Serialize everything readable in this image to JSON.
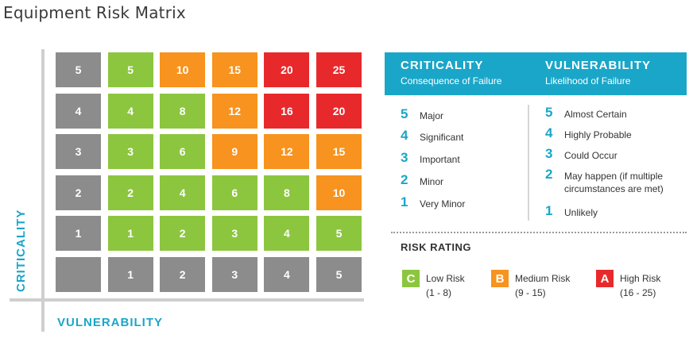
{
  "title": "Equipment Risk Matrix",
  "axes": {
    "y_label": "CRITICALITY",
    "x_label": "VULNERABILITY"
  },
  "colors": {
    "gray": "#8c8c8c",
    "low": "#8cc63f",
    "medium": "#f7931e",
    "high": "#e8292c",
    "accent": "#1aa6c8"
  },
  "matrix": {
    "rows": [
      [
        {
          "v": "5",
          "c": "gray"
        },
        {
          "v": "5",
          "c": "low"
        },
        {
          "v": "10",
          "c": "medium"
        },
        {
          "v": "15",
          "c": "medium"
        },
        {
          "v": "20",
          "c": "high"
        },
        {
          "v": "25",
          "c": "high"
        }
      ],
      [
        {
          "v": "4",
          "c": "gray"
        },
        {
          "v": "4",
          "c": "low"
        },
        {
          "v": "8",
          "c": "low"
        },
        {
          "v": "12",
          "c": "medium"
        },
        {
          "v": "16",
          "c": "high"
        },
        {
          "v": "20",
          "c": "high"
        }
      ],
      [
        {
          "v": "3",
          "c": "gray"
        },
        {
          "v": "3",
          "c": "low"
        },
        {
          "v": "6",
          "c": "low"
        },
        {
          "v": "9",
          "c": "medium"
        },
        {
          "v": "12",
          "c": "medium"
        },
        {
          "v": "15",
          "c": "medium"
        }
      ],
      [
        {
          "v": "2",
          "c": "gray"
        },
        {
          "v": "2",
          "c": "low"
        },
        {
          "v": "4",
          "c": "low"
        },
        {
          "v": "6",
          "c": "low"
        },
        {
          "v": "8",
          "c": "low"
        },
        {
          "v": "10",
          "c": "medium"
        }
      ],
      [
        {
          "v": "1",
          "c": "gray"
        },
        {
          "v": "1",
          "c": "low"
        },
        {
          "v": "2",
          "c": "low"
        },
        {
          "v": "3",
          "c": "low"
        },
        {
          "v": "4",
          "c": "low"
        },
        {
          "v": "5",
          "c": "low"
        }
      ],
      [
        {
          "v": "",
          "c": "gray"
        },
        {
          "v": "1",
          "c": "gray"
        },
        {
          "v": "2",
          "c": "gray"
        },
        {
          "v": "3",
          "c": "gray"
        },
        {
          "v": "4",
          "c": "gray"
        },
        {
          "v": "5",
          "c": "gray"
        }
      ]
    ]
  },
  "legend": {
    "criticality": {
      "title": "CRITICALITY",
      "subtitle": "Consequence of Failure",
      "items": [
        {
          "num": "5",
          "label": "Major"
        },
        {
          "num": "4",
          "label": "Significant"
        },
        {
          "num": "3",
          "label": "Important"
        },
        {
          "num": "2",
          "label": "Minor"
        },
        {
          "num": "1",
          "label": "Very Minor"
        }
      ]
    },
    "vulnerability": {
      "title": "VULNERABILITY",
      "subtitle": "Likelihood of Failure",
      "items": [
        {
          "num": "5",
          "label": "Almost Certain"
        },
        {
          "num": "4",
          "label": "Highly Probable"
        },
        {
          "num": "3",
          "label": "Could Occur"
        },
        {
          "num": "2",
          "label": "May happen (if multiple\ncircumstances are met)"
        },
        {
          "num": "1",
          "label": "Unlikely"
        }
      ]
    }
  },
  "risk_rating": {
    "title": "RISK RATING",
    "items": [
      {
        "letter": "C",
        "label": "Low Risk",
        "range": "(1 - 8)",
        "color": "low"
      },
      {
        "letter": "B",
        "label": "Medium Risk",
        "range": "(9 - 15)",
        "color": "medium"
      },
      {
        "letter": "A",
        "label": "High Risk",
        "range": "(16 - 25)",
        "color": "high"
      }
    ]
  }
}
